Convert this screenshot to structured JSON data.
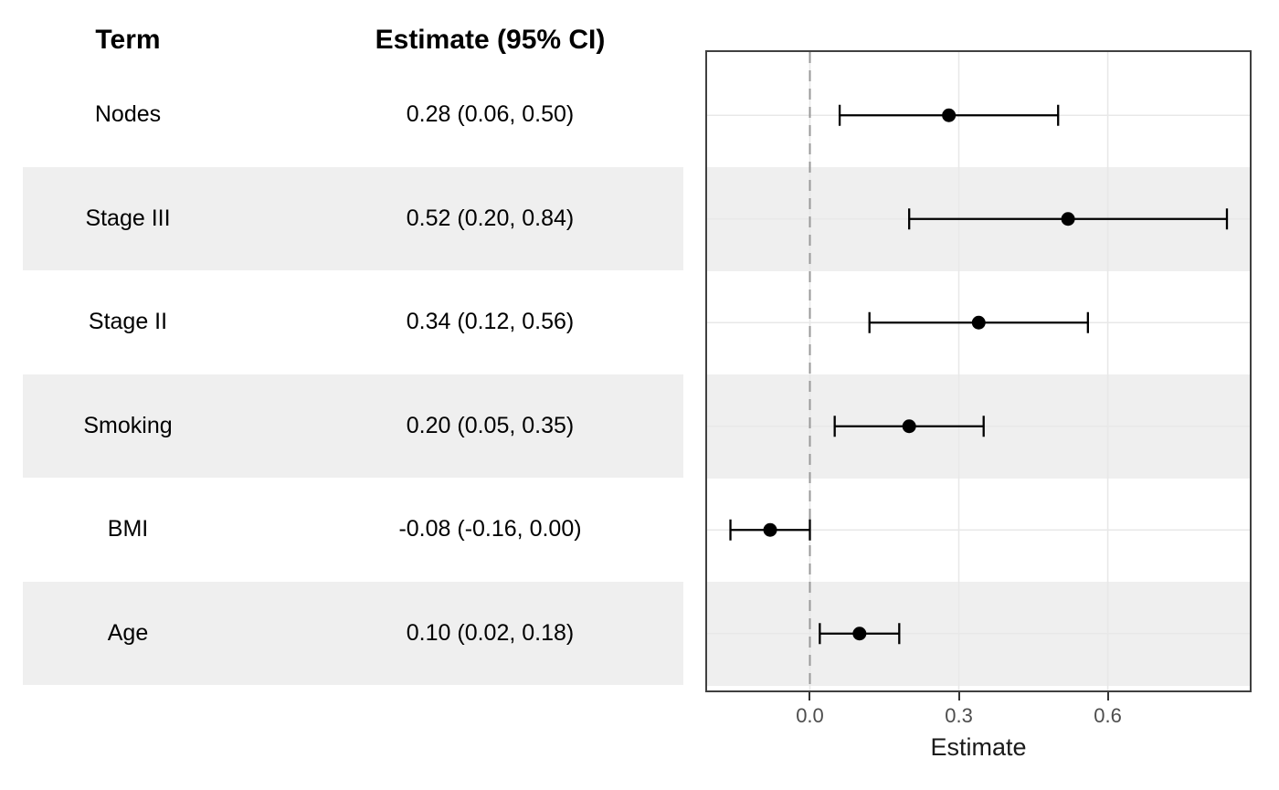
{
  "table": {
    "headers": {
      "term": "Term",
      "estimate": "Estimate (95% CI)"
    }
  },
  "chart_data": {
    "type": "scatter",
    "subtype": "forest-plot",
    "title": "",
    "xlabel": "Estimate",
    "ylabel": "",
    "xlim": [
      -0.207,
      0.886
    ],
    "x_tick_values": [
      0.0,
      0.3,
      0.6
    ],
    "x_tick_labels": [
      "0.0",
      "0.3",
      "0.6"
    ],
    "reference_line_x": 0,
    "grid": "major-only",
    "legend": "none",
    "rows": [
      {
        "term": "Nodes",
        "estimate": 0.28,
        "ci_low": 0.06,
        "ci_high": 0.5,
        "label": "0.28 (0.06, 0.50)"
      },
      {
        "term": "Stage III",
        "estimate": 0.52,
        "ci_low": 0.2,
        "ci_high": 0.84,
        "label": "0.52 (0.20, 0.84)"
      },
      {
        "term": "Stage II",
        "estimate": 0.34,
        "ci_low": 0.12,
        "ci_high": 0.56,
        "label": "0.34 (0.12, 0.56)"
      },
      {
        "term": "Smoking",
        "estimate": 0.2,
        "ci_low": 0.05,
        "ci_high": 0.35,
        "label": "0.20 (0.05, 0.35)"
      },
      {
        "term": "BMI",
        "estimate": -0.08,
        "ci_low": -0.16,
        "ci_high": 0.0,
        "label": "-0.08 (-0.16, 0.00)"
      },
      {
        "term": "Age",
        "estimate": 0.1,
        "ci_low": 0.02,
        "ci_high": 0.18,
        "label": "0.10 (0.02, 0.18)"
      }
    ]
  },
  "colors": {
    "stripe": "#efefef",
    "gridline": "#e8e8e8",
    "panel_border": "#404040",
    "reference_line": "#999999",
    "marker": "#000000",
    "tick_label": "#4d4d4d"
  }
}
